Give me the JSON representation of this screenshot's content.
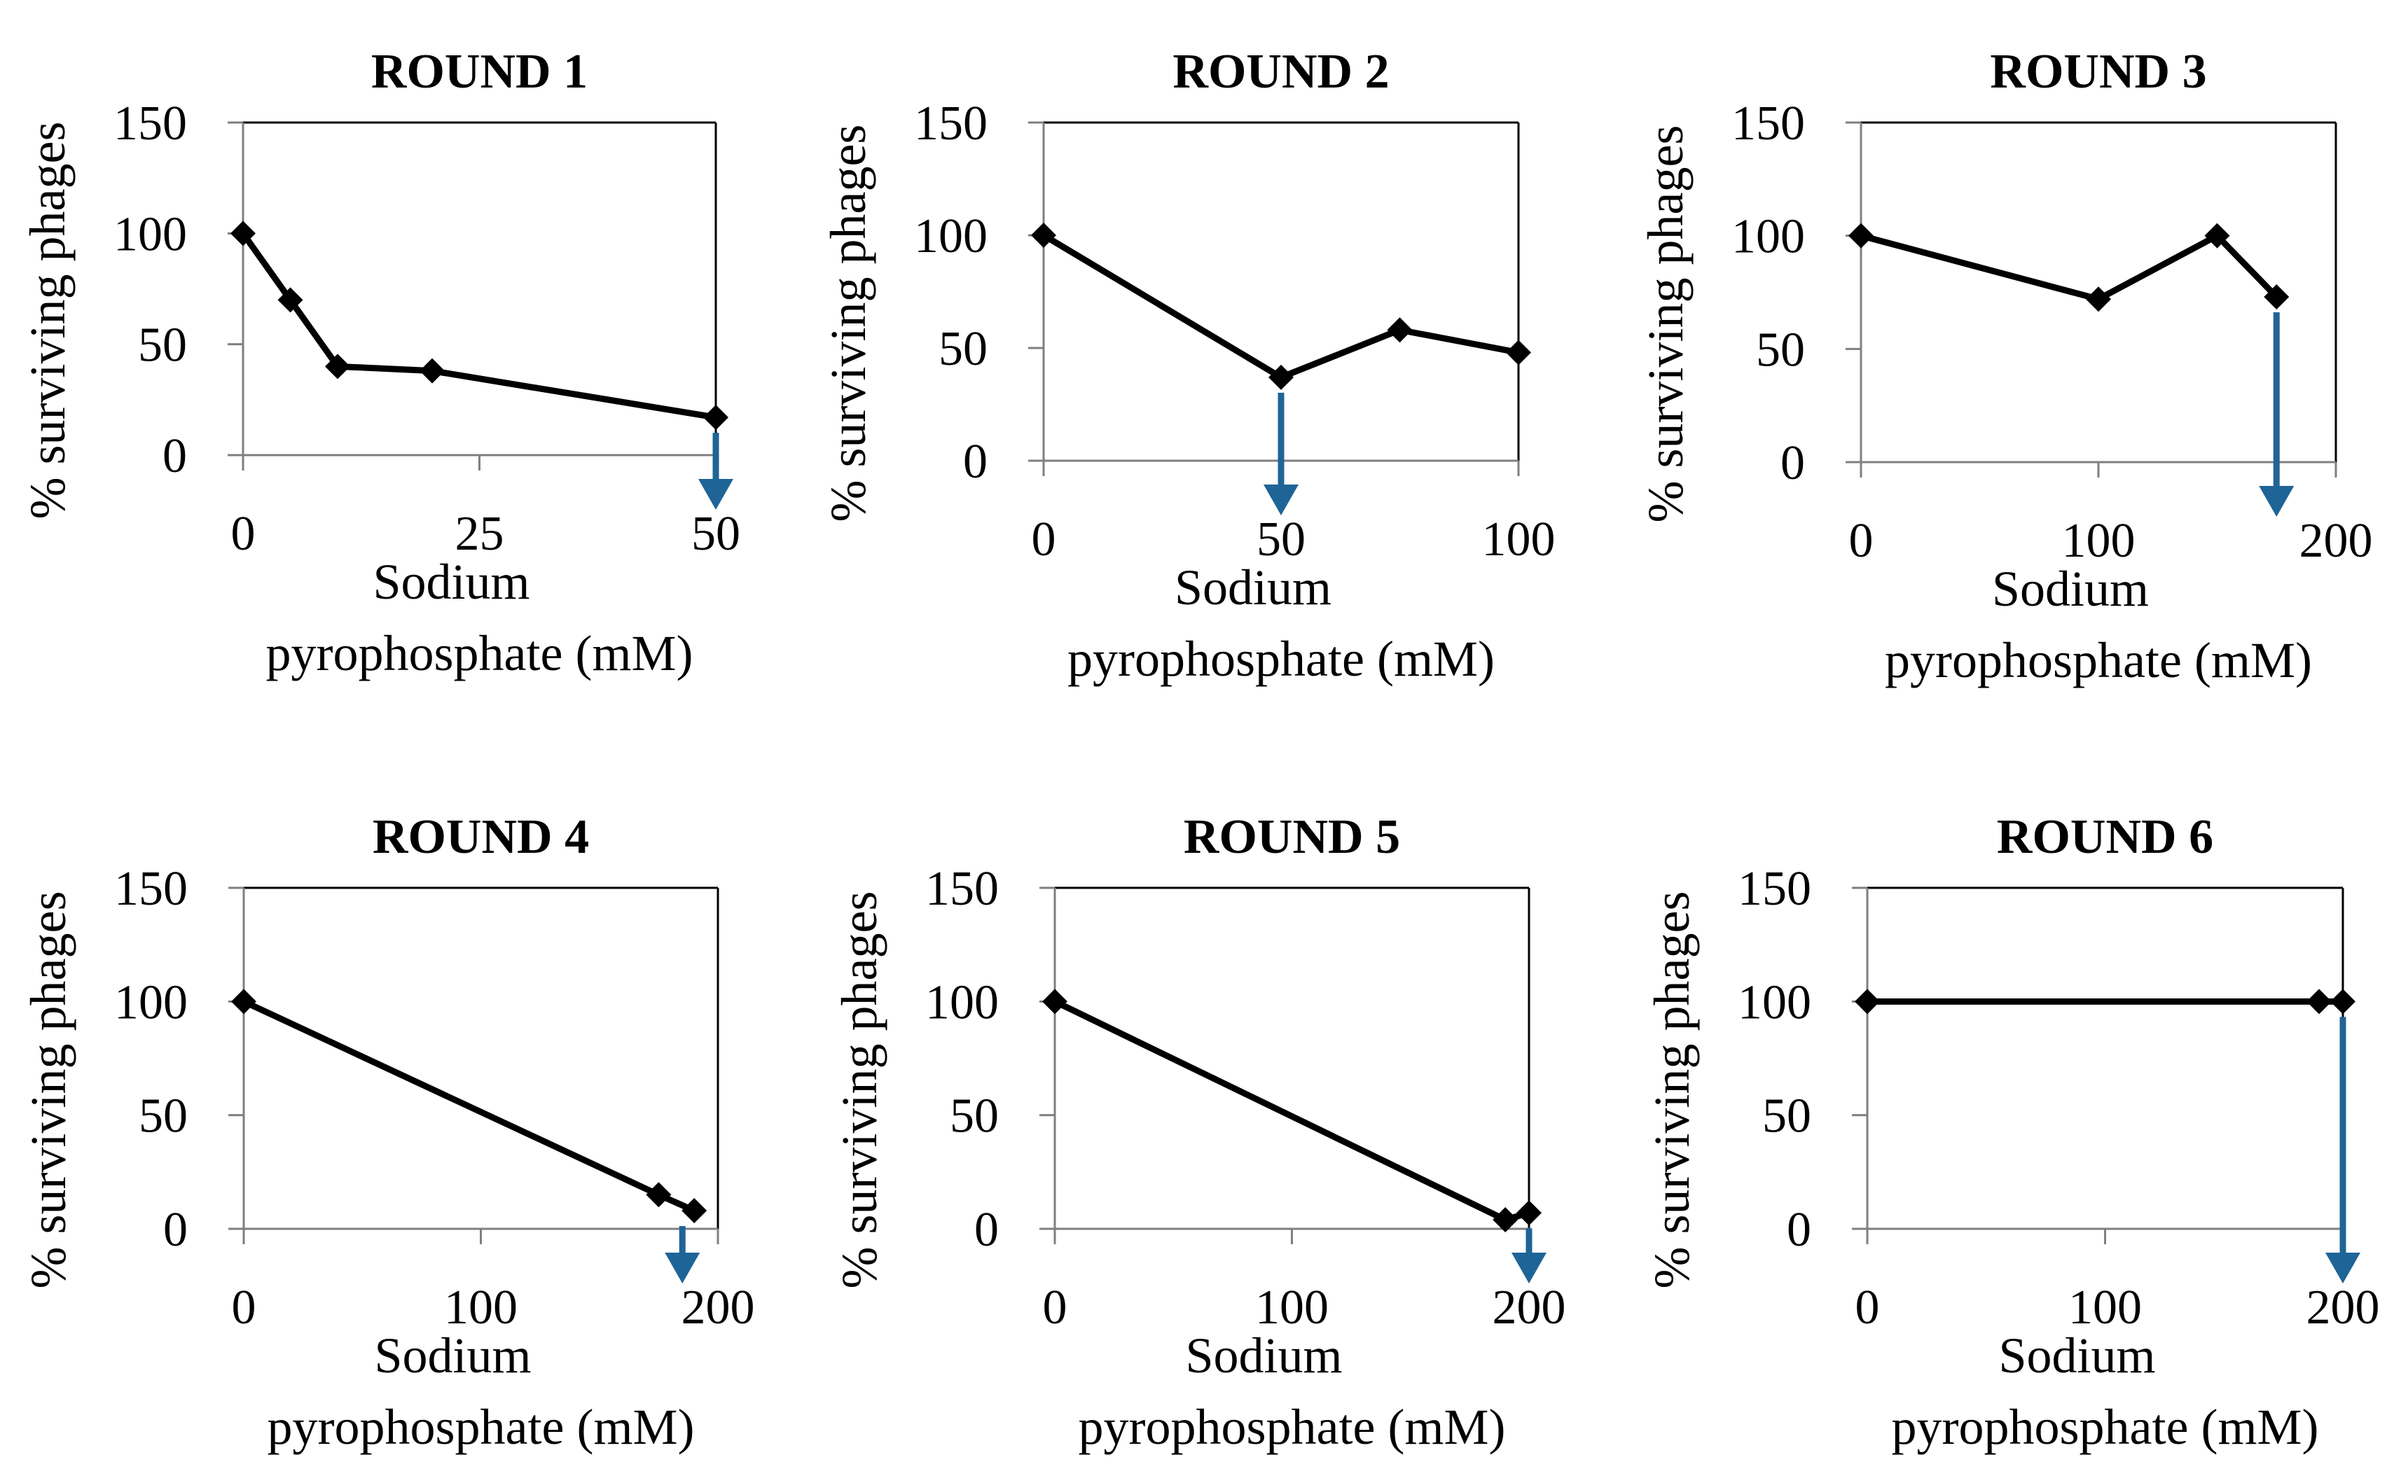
{
  "figure_title": "Phage survival vs sodium pyrophosphate concentration across selection rounds",
  "colors": {
    "line": "#000000",
    "arrow": "#1F6497",
    "axis": "#000000",
    "background": "#ffffff"
  },
  "chart_data": [
    {
      "type": "line",
      "title": "ROUND 1",
      "xlabel": "Sodium pyrophosphate (mM)",
      "xlabel_lines": [
        "Sodium",
        "pyrophosphate (mM)"
      ],
      "ylabel": "% surviving phages",
      "xlim": [
        0,
        50
      ],
      "ylim": [
        0,
        150
      ],
      "xticks": [
        0,
        25,
        50
      ],
      "yticks": [
        0,
        50,
        100,
        150
      ],
      "x": [
        0,
        5,
        10,
        20,
        50
      ],
      "y": [
        100,
        70,
        40,
        38,
        17
      ],
      "arrow_x": 50,
      "arrow_from_y": 17
    },
    {
      "type": "line",
      "title": "ROUND 2",
      "xlabel": "Sodium pyrophosphate (mM)",
      "xlabel_lines": [
        "Sodium",
        "pyrophosphate (mM)"
      ],
      "ylabel": "% surviving phages",
      "xlim": [
        0,
        100
      ],
      "ylim": [
        0,
        150
      ],
      "xticks": [
        0,
        50,
        100
      ],
      "yticks": [
        0,
        50,
        100,
        150
      ],
      "x": [
        0,
        50,
        75,
        100
      ],
      "y": [
        100,
        37,
        58,
        48
      ],
      "arrow_x": 50,
      "arrow_from_y": 37
    },
    {
      "type": "line",
      "title": "ROUND 3",
      "xlabel": "Sodium pyrophosphate (mM)",
      "xlabel_lines": [
        "Sodium",
        "pyrophosphate (mM)"
      ],
      "ylabel": "% surviving phages",
      "xlim": [
        0,
        200
      ],
      "ylim": [
        0,
        150
      ],
      "xticks": [
        0,
        100,
        200
      ],
      "yticks": [
        0,
        50,
        100,
        150
      ],
      "x": [
        0,
        100,
        150,
        175
      ],
      "y": [
        100,
        72,
        100,
        73
      ],
      "arrow_x": 175,
      "arrow_from_y": 73
    },
    {
      "type": "line",
      "title": "ROUND 4",
      "xlabel": "Sodium pyrophosphate (mM)",
      "xlabel_lines": [
        "Sodium",
        "pyrophosphate (mM)"
      ],
      "ylabel": "% surviving phages",
      "xlim": [
        0,
        200
      ],
      "ylim": [
        0,
        150
      ],
      "xticks": [
        0,
        100,
        200
      ],
      "yticks": [
        0,
        50,
        100,
        150
      ],
      "x": [
        0,
        175,
        190
      ],
      "y": [
        100,
        15,
        8
      ],
      "arrow_x": 185,
      "arrow_from_y": 8
    },
    {
      "type": "line",
      "title": "ROUND 5",
      "xlabel": "Sodium pyrophosphate (mM)",
      "xlabel_lines": [
        "Sodium",
        "pyrophosphate (mM)"
      ],
      "ylabel": "% surviving phages",
      "xlim": [
        0,
        200
      ],
      "ylim": [
        0,
        150
      ],
      "xticks": [
        0,
        100,
        200
      ],
      "yticks": [
        0,
        50,
        100,
        150
      ],
      "x": [
        0,
        190,
        200
      ],
      "y": [
        100,
        4,
        7
      ],
      "arrow_x": 200,
      "arrow_from_y": 7
    },
    {
      "type": "line",
      "title": "ROUND 6",
      "xlabel": "Sodium pyrophosphate (mM)",
      "xlabel_lines": [
        "Sodium",
        "pyrophosphate (mM)"
      ],
      "ylabel": "% surviving phages",
      "xlim": [
        0,
        200
      ],
      "ylim": [
        0,
        150
      ],
      "xticks": [
        0,
        100,
        200
      ],
      "yticks": [
        0,
        50,
        100,
        150
      ],
      "x": [
        0,
        190,
        200
      ],
      "y": [
        100,
        100,
        100
      ],
      "arrow_x": 200,
      "arrow_from_y": 100
    }
  ]
}
